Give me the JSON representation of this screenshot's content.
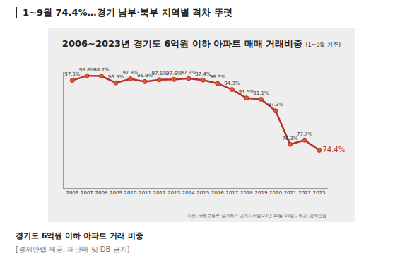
{
  "page": {
    "headline": "1~9월 74.4%…경기 남부·북부 지역별 격차 뚜렷",
    "caption": "경기도 6억원 이하 아파트 거래 비중",
    "credit": "[경제만랩 제공. 재판매 및 DB 금지]"
  },
  "chart_data": {
    "type": "line",
    "title": "2006~2023년 경기도 6억원 이하 아파트 매매 거래비중",
    "subtitle": "(1~9월 기준)",
    "annotations": [
      "자료: 국토교통부 실거래가 공개시스템(23년 10월 10일), 제공: 경제만랩"
    ],
    "categories": [
      "2006",
      "2007",
      "2008",
      "2009",
      "2010",
      "2011",
      "2012",
      "2013",
      "2014",
      "2015",
      "2016",
      "2017",
      "2018",
      "2019",
      "2020",
      "2021",
      "2022",
      "2023"
    ],
    "values": [
      97.3,
      98.8,
      98.7,
      96.5,
      97.8,
      96.9,
      97.5,
      97.6,
      97.9,
      97.4,
      96.3,
      94.3,
      91.5,
      91.1,
      87.3,
      76.3,
      77.7,
      74.4
    ],
    "value_labels": [
      "97.3%",
      "98.8%",
      "98.7%",
      "96.5%",
      "97.8%",
      "96.9%",
      "97.5%",
      "97.6%",
      "97.9%",
      "97.4%",
      "96.3%",
      "94.3%",
      "91.5%",
      "91.1%",
      "87.3%",
      "76.3%",
      "77.7%",
      "74.4%"
    ],
    "data_labels": true,
    "color": "#b5302a",
    "marker": "circle",
    "ylim": [
      62,
      100
    ],
    "tick_labels": "x",
    "grid": false
  }
}
